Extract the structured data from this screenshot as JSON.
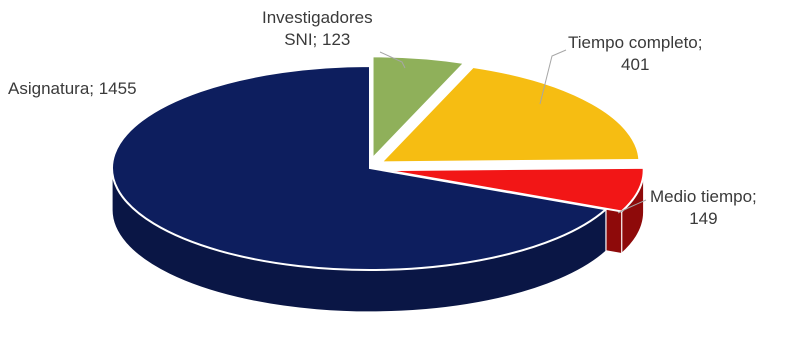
{
  "chart_data": {
    "type": "pie",
    "style": "3d-exploded",
    "title": "",
    "slices": [
      {
        "name": "Investigadores SNI",
        "value": 123,
        "color": "#8fb05a",
        "side": "#5f7d37",
        "label_lines": [
          "Investigadores",
          "SNI; 123"
        ]
      },
      {
        "name": "Tiempo completo",
        "value": 401,
        "color": "#f6bd12",
        "side": "#b88a07",
        "label_lines": [
          "Tiempo completo;",
          "401"
        ]
      },
      {
        "name": "Medio tiempo",
        "value": 149,
        "color": "#f21616",
        "side": "#8e0a0a",
        "label_lines": [
          "Medio tiempo;",
          "149"
        ]
      },
      {
        "name": "Asignatura",
        "value": 1455,
        "color": "#0d1e5e",
        "side": "#0a1645",
        "label_lines": [
          "Asignatura; 1455"
        ]
      }
    ]
  }
}
